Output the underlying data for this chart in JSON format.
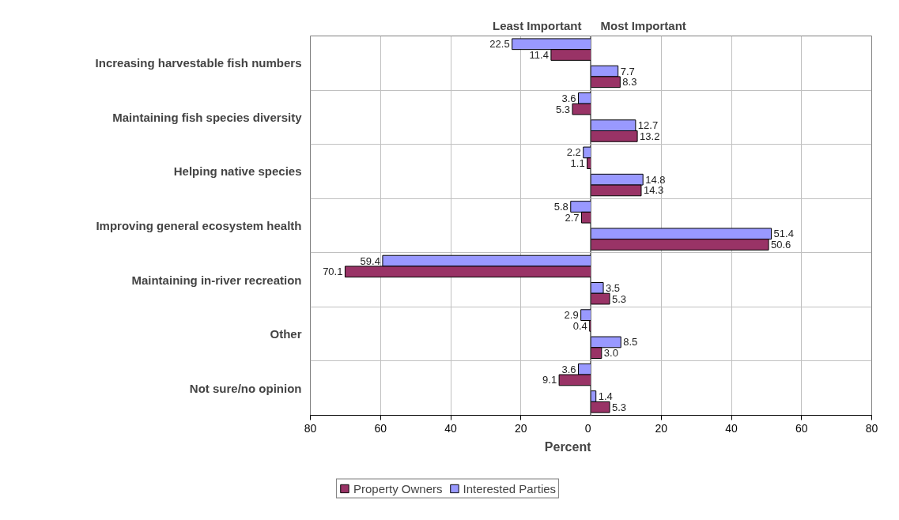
{
  "chart_data": [
    {
      "type": "bar",
      "orientation": "horizontal",
      "title": "Least Important",
      "xlabel": "Percent",
      "categories": [
        "Increasing harvestable fish numbers",
        "Maintaining fish species diversity",
        "Helping native species",
        "Improving general ecosystem health",
        "Maintaining in-river recreation",
        "Other",
        "Not sure/no opinion"
      ],
      "series": [
        {
          "color": "#9999ff",
          "values": [
            22.5,
            3.6,
            2.2,
            5.8,
            59.4,
            2.9,
            3.6
          ],
          "value_labels": [
            "22.5",
            "3.6",
            "2.2",
            "5.8",
            "59.4",
            "2.9",
            "3.6"
          ]
        },
        {
          "color": "#993366",
          "values": [
            11.4,
            5.3,
            1.1,
            2.7,
            70.1,
            0.4,
            9.1
          ],
          "value_labels": [
            "11.4",
            "5.3",
            "1.1",
            "2.7",
            "70.1",
            "0.4",
            "9.1"
          ]
        }
      ],
      "xlim": [
        80,
        0
      ],
      "xticks": [
        80,
        60,
        40,
        20,
        0
      ],
      "grid": true
    },
    {
      "type": "bar",
      "orientation": "horizontal",
      "title": "Most Important",
      "series": [
        {
          "name": "Interested Parties",
          "color": "#9999ff",
          "values": [
            7.7,
            12.7,
            14.8,
            51.4,
            3.5,
            8.5,
            1.4
          ],
          "value_labels": [
            "7.7",
            "12.7",
            "14.8",
            "51.4",
            "3.5",
            "8.5",
            "1.4"
          ]
        },
        {
          "name": "Property Owners",
          "color": "#993366",
          "values": [
            8.3,
            13.2,
            14.3,
            50.6,
            5.3,
            3.0,
            5.3
          ],
          "value_labels": [
            "8.3",
            "13.2",
            "14.3",
            "50.6",
            "5.3",
            "3.0",
            "5.3"
          ]
        }
      ],
      "xlim": [
        0,
        80
      ],
      "xticks": [
        20,
        40,
        60,
        80
      ],
      "tick_labels": "x",
      "grid": true,
      "legend": "bottom"
    }
  ]
}
